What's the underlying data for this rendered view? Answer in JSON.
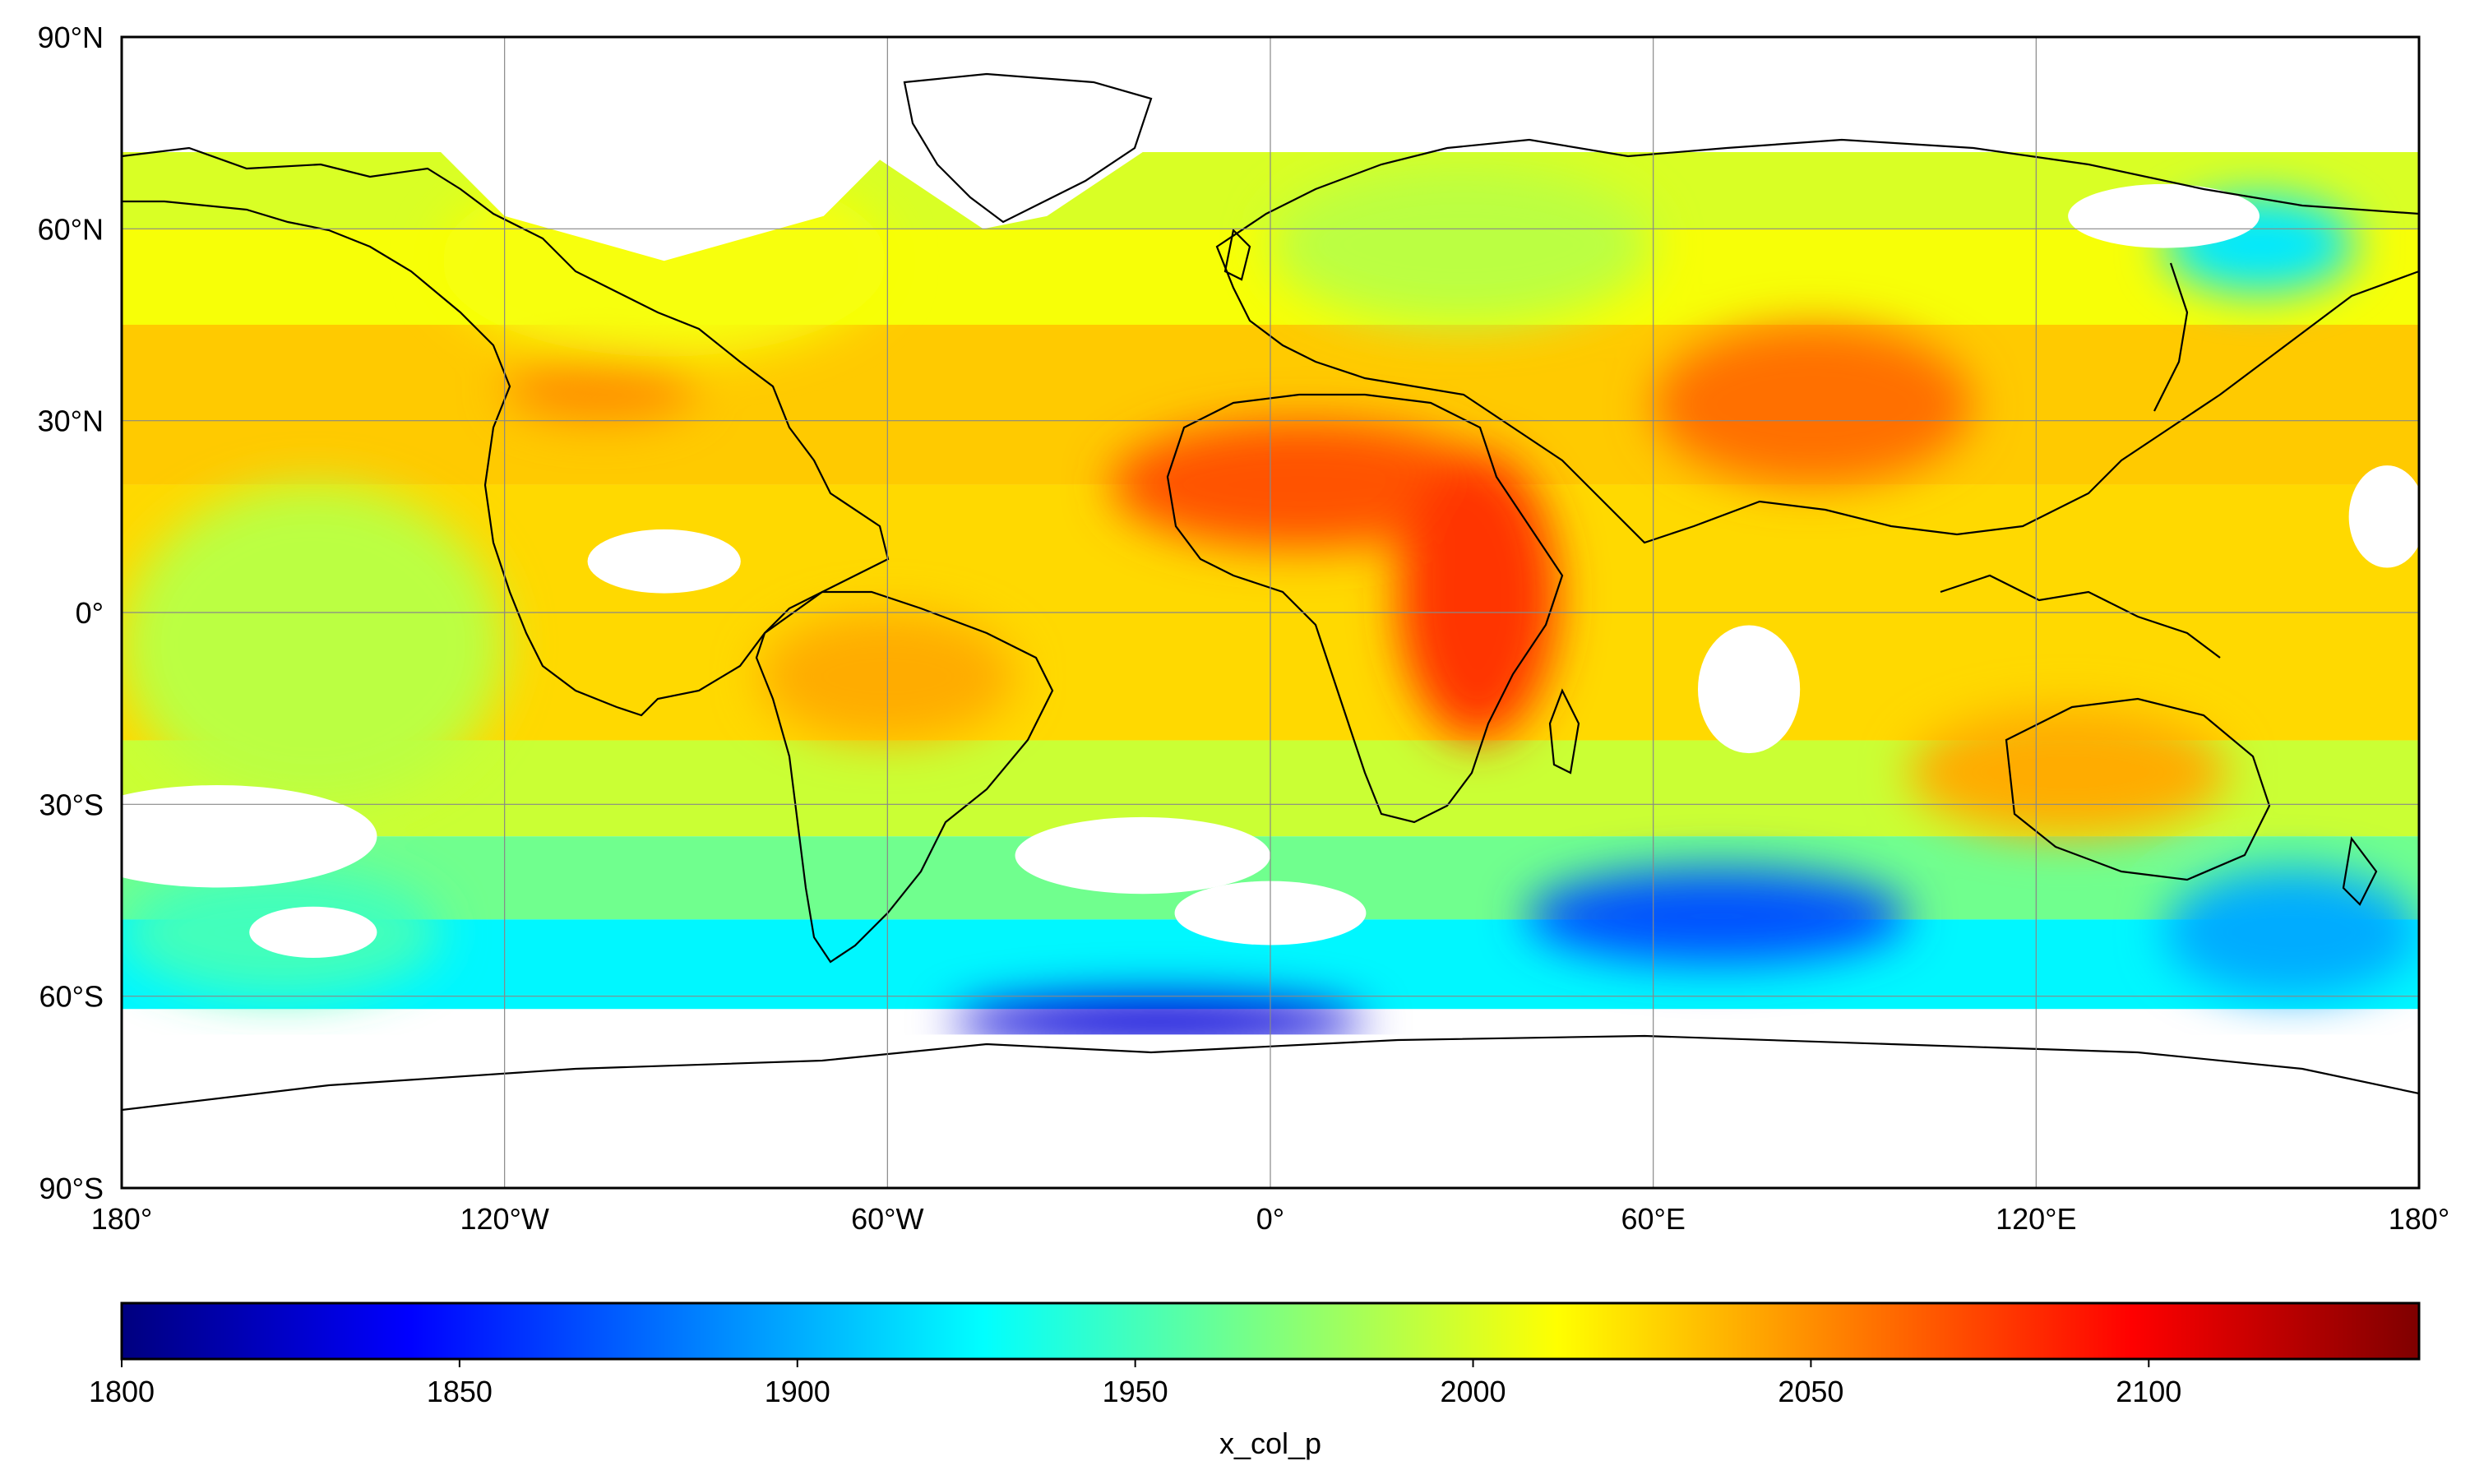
{
  "map": {
    "projection": "equirectangular",
    "lon_range": [
      -180,
      180
    ],
    "lat_range": [
      -90,
      90
    ],
    "gridlines": true,
    "coastlines": true,
    "country_borders": true,
    "lat_ticks": [
      {
        "value": 90,
        "label": "90°N"
      },
      {
        "value": 60,
        "label": "60°N"
      },
      {
        "value": 30,
        "label": "30°N"
      },
      {
        "value": 0,
        "label": "0°"
      },
      {
        "value": -30,
        "label": "30°S"
      },
      {
        "value": -60,
        "label": "60°S"
      },
      {
        "value": -90,
        "label": "90°S"
      }
    ],
    "lon_ticks": [
      {
        "value": -180,
        "label": "180°"
      },
      {
        "value": -120,
        "label": "120°W"
      },
      {
        "value": -60,
        "label": "60°W"
      },
      {
        "value": 0,
        "label": "0°"
      },
      {
        "value": 60,
        "label": "60°E"
      },
      {
        "value": 120,
        "label": "120°E"
      },
      {
        "value": 180,
        "label": "180°"
      }
    ]
  },
  "colorbar": {
    "title": "x_col_p",
    "colormap": "jet",
    "range": [
      1800,
      2140
    ],
    "ticks": [
      {
        "value": 1800,
        "label": "1800"
      },
      {
        "value": 1850,
        "label": "1850"
      },
      {
        "value": 1900,
        "label": "1900"
      },
      {
        "value": 1950,
        "label": "1950"
      },
      {
        "value": 2000,
        "label": "2000"
      },
      {
        "value": 2050,
        "label": "2050"
      },
      {
        "value": 2100,
        "label": "2100"
      }
    ],
    "stops": [
      "#00007f",
      "#0000ff",
      "#007fff",
      "#00ffff",
      "#7fff7f",
      "#ffff00",
      "#ff7f00",
      "#ff0000",
      "#7f0000"
    ]
  },
  "chart_data": {
    "type": "heatmap",
    "title": "",
    "xlabel": "",
    "ylabel": "",
    "colorbar_label": "x_col_p",
    "value_range": [
      1800,
      2140
    ],
    "regions": [
      {
        "lon": [
          -25,
          35
        ],
        "lat": [
          10,
          30
        ],
        "value": 2070
      },
      {
        "lon": [
          20,
          45
        ],
        "lat": [
          -20,
          25
        ],
        "value": 2080
      },
      {
        "lon": [
          60,
          110
        ],
        "lat": [
          20,
          45
        ],
        "value": 2060
      },
      {
        "lon": [
          -120,
          -90
        ],
        "lat": [
          30,
          40
        ],
        "value": 2050
      },
      {
        "lon": [
          -80,
          -40
        ],
        "lat": [
          -20,
          0
        ],
        "value": 2040
      },
      {
        "lon": [
          100,
          150
        ],
        "lat": [
          -35,
          -15
        ],
        "value": 2040
      },
      {
        "lon": [
          -50,
          15
        ],
        "lat": [
          -68,
          -60
        ],
        "value": 1830
      },
      {
        "lon": [
          40,
          100
        ],
        "lat": [
          -55,
          -40
        ],
        "value": 1870
      },
      {
        "lon": [
          140,
          180
        ],
        "lat": [
          -60,
          -40
        ],
        "value": 1900
      },
      {
        "lon": [
          -180,
          -130
        ],
        "lat": [
          -60,
          -40
        ],
        "value": 1950
      },
      {
        "lon": [
          -180,
          -120
        ],
        "lat": [
          -30,
          20
        ],
        "value": 1990
      },
      {
        "lon": [
          140,
          170
        ],
        "lat": [
          50,
          65
        ],
        "value": 1920
      },
      {
        "lon": [
          0,
          60
        ],
        "lat": [
          45,
          70
        ],
        "value": 1990
      },
      {
        "lon": [
          -130,
          -60
        ],
        "lat": [
          40,
          70
        ],
        "value": 2010
      }
    ]
  }
}
